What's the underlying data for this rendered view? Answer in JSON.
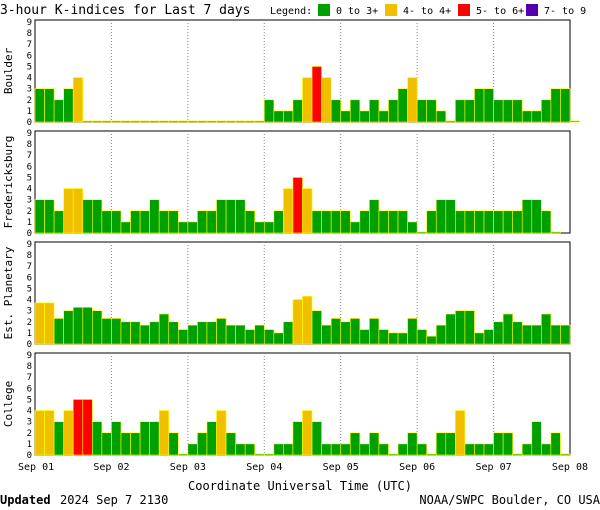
{
  "title": "3-hour K-indices for Last 7 days",
  "legend": {
    "label": "Legend:",
    "items": [
      {
        "label": "0 to 3+",
        "color": "#00a000"
      },
      {
        "label": "4- to 4+",
        "color": "#f0c000"
      },
      {
        "label": "5- to 6+",
        "color": "#ff0000"
      },
      {
        "label": "7- to 9",
        "color": "#5500aa"
      }
    ]
  },
  "x_axis": {
    "label": "Coordinate Universal Time (UTC)",
    "ticks": [
      "Sep 01",
      "Sep 02",
      "Sep 03",
      "Sep 04",
      "Sep 05",
      "Sep 06",
      "Sep 07",
      "Sep 08"
    ]
  },
  "y_ticks": [
    "0",
    "1",
    "2",
    "3",
    "4",
    "5",
    "6",
    "7",
    "8",
    "9"
  ],
  "footer": {
    "updated_label": "Updated",
    "updated_value": "2024 Sep  7 2130",
    "source": "NOAA/SWPC Boulder, CO USA"
  },
  "chart_data": [
    {
      "type": "bar",
      "name": "Boulder",
      "ylim": [
        0,
        9
      ],
      "values": [
        3,
        3,
        2,
        3,
        4,
        0.1,
        0.1,
        0.1,
        0.1,
        0.1,
        0.1,
        0.1,
        0.1,
        0.1,
        0.1,
        0.1,
        0.1,
        0.1,
        0.1,
        0.1,
        0.1,
        0.1,
        0.1,
        0.1,
        2,
        1,
        1,
        2,
        4,
        5,
        4,
        2,
        1,
        2,
        1,
        2,
        1,
        2,
        3,
        4,
        2,
        2,
        1,
        0.1,
        2,
        2,
        3,
        3,
        2,
        2,
        2,
        1,
        1,
        2,
        3,
        3,
        0.1
      ]
    },
    {
      "type": "bar",
      "name": "Fredericksburg",
      "ylim": [
        0,
        9
      ],
      "values": [
        3,
        3,
        2,
        4,
        4,
        3,
        3,
        2,
        2,
        1,
        2,
        2,
        3,
        2,
        2,
        1,
        1,
        2,
        2,
        3,
        3,
        3,
        2,
        1,
        1,
        2,
        4,
        5,
        4,
        2,
        2,
        2,
        2,
        1,
        2,
        3,
        2,
        2,
        2,
        1,
        0.1,
        2,
        3,
        3,
        2,
        2,
        2,
        2,
        2,
        2,
        2,
        3,
        3,
        2,
        0.1
      ]
    },
    {
      "type": "bar",
      "name": "Est. Planetary",
      "ylim": [
        0,
        9
      ],
      "values": [
        3.7,
        3.7,
        2.3,
        3,
        3.3,
        3.3,
        3,
        2.3,
        2.3,
        2,
        2,
        1.7,
        2,
        2.7,
        2,
        1.3,
        1.7,
        2,
        2,
        2.3,
        1.7,
        1.7,
        1.3,
        1.7,
        1.3,
        1,
        2,
        4,
        4.3,
        3,
        1.7,
        2.3,
        2,
        2.3,
        1.3,
        2.3,
        1.3,
        1,
        1,
        2.3,
        1.3,
        0.7,
        1.7,
        2.7,
        3,
        3,
        1,
        1.3,
        2,
        2.7,
        2,
        1.7,
        1.7,
        2.7,
        1.7,
        1.7
      ]
    },
    {
      "type": "bar",
      "name": "College",
      "ylim": [
        0,
        9
      ],
      "values": [
        4,
        4,
        3,
        4,
        5,
        5,
        3,
        2,
        3,
        2,
        2,
        3,
        3,
        4,
        2,
        0.1,
        1,
        2,
        3,
        4,
        2,
        1,
        1,
        0.1,
        0.1,
        1,
        1,
        3,
        4,
        3,
        1,
        1,
        1,
        2,
        1,
        2,
        1,
        0.1,
        1,
        2,
        1,
        0.1,
        2,
        2,
        4,
        1,
        1,
        1,
        2,
        2,
        0.1,
        1,
        3,
        1,
        2,
        0.1
      ]
    }
  ]
}
